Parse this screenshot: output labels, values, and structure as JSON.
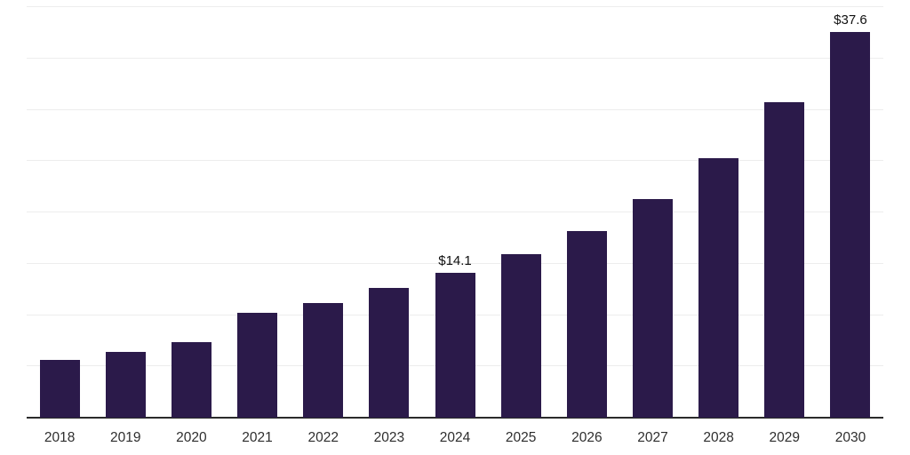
{
  "chart_data": {
    "type": "bar",
    "categories": [
      "2018",
      "2019",
      "2020",
      "2021",
      "2022",
      "2023",
      "2024",
      "2025",
      "2026",
      "2027",
      "2028",
      "2029",
      "2030"
    ],
    "values": [
      5.6,
      6.4,
      7.4,
      10.2,
      11.2,
      12.6,
      14.1,
      15.9,
      18.2,
      21.3,
      25.3,
      30.7,
      37.6
    ],
    "annotations": [
      {
        "category": "2024",
        "text": "$14.1"
      },
      {
        "category": "2030",
        "text": "$37.6"
      }
    ],
    "title": "",
    "xlabel": "",
    "ylabel": "",
    "ylim": [
      0,
      40
    ],
    "gridline_step": 5,
    "grid": true,
    "legend_position": "none",
    "bar_color": "#2b1a4a",
    "gridline_color": "#ededed",
    "axis_line_color": "#2b2b2b",
    "label_color": "#101010",
    "tick_color": "#2e2e2e"
  }
}
